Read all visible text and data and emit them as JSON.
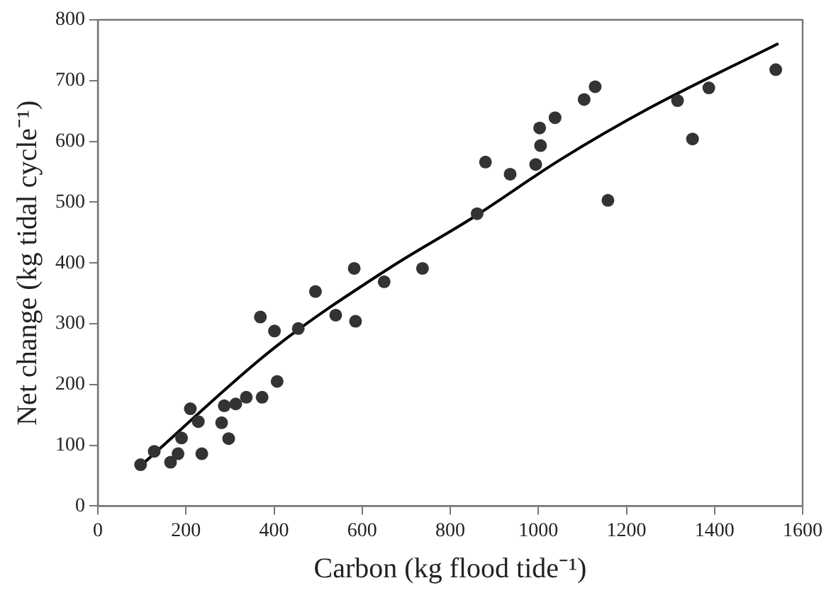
{
  "chart_data": {
    "type": "scatter",
    "xlabel": "Carbon (kg flood tide⁻¹)",
    "ylabel": "Net change (kg tidal cycle⁻¹)",
    "xlim": [
      0,
      1600
    ],
    "xticks": [
      0,
      200,
      400,
      600,
      800,
      1000,
      1200,
      1400,
      1600
    ],
    "ylim": [
      0,
      800
    ],
    "yticks": [
      0,
      100,
      200,
      300,
      400,
      500,
      600,
      700,
      800
    ],
    "marker": "circle",
    "series": [
      {
        "type": "scatter",
        "color": "#333333",
        "x": [
          97,
          128,
          165,
          182,
          190,
          210,
          228,
          236,
          281,
          287,
          297,
          313,
          337,
          373,
          369,
          407,
          401,
          455,
          494,
          540,
          585,
          582,
          650,
          737,
          861,
          880,
          936,
          994,
          1005,
          1003,
          1038,
          1104,
          1129,
          1158,
          1316,
          1387,
          1350,
          1539
        ],
        "values": [
          68,
          90,
          72,
          86,
          112,
          160,
          139,
          86,
          137,
          165,
          111,
          168,
          179,
          179,
          311,
          205,
          288,
          292,
          353,
          314,
          304,
          391,
          369,
          391,
          481,
          566,
          546,
          562,
          593,
          622,
          639,
          669,
          690,
          503,
          667,
          688,
          604,
          718
        ]
      },
      {
        "type": "line",
        "color": "#000000",
        "marker": "none",
        "x": [
          100,
          400,
          665,
          850,
          1050,
          1250,
          1545
        ],
        "values": [
          68,
          260,
          393,
          474,
          570,
          654,
          761
        ]
      }
    ]
  }
}
